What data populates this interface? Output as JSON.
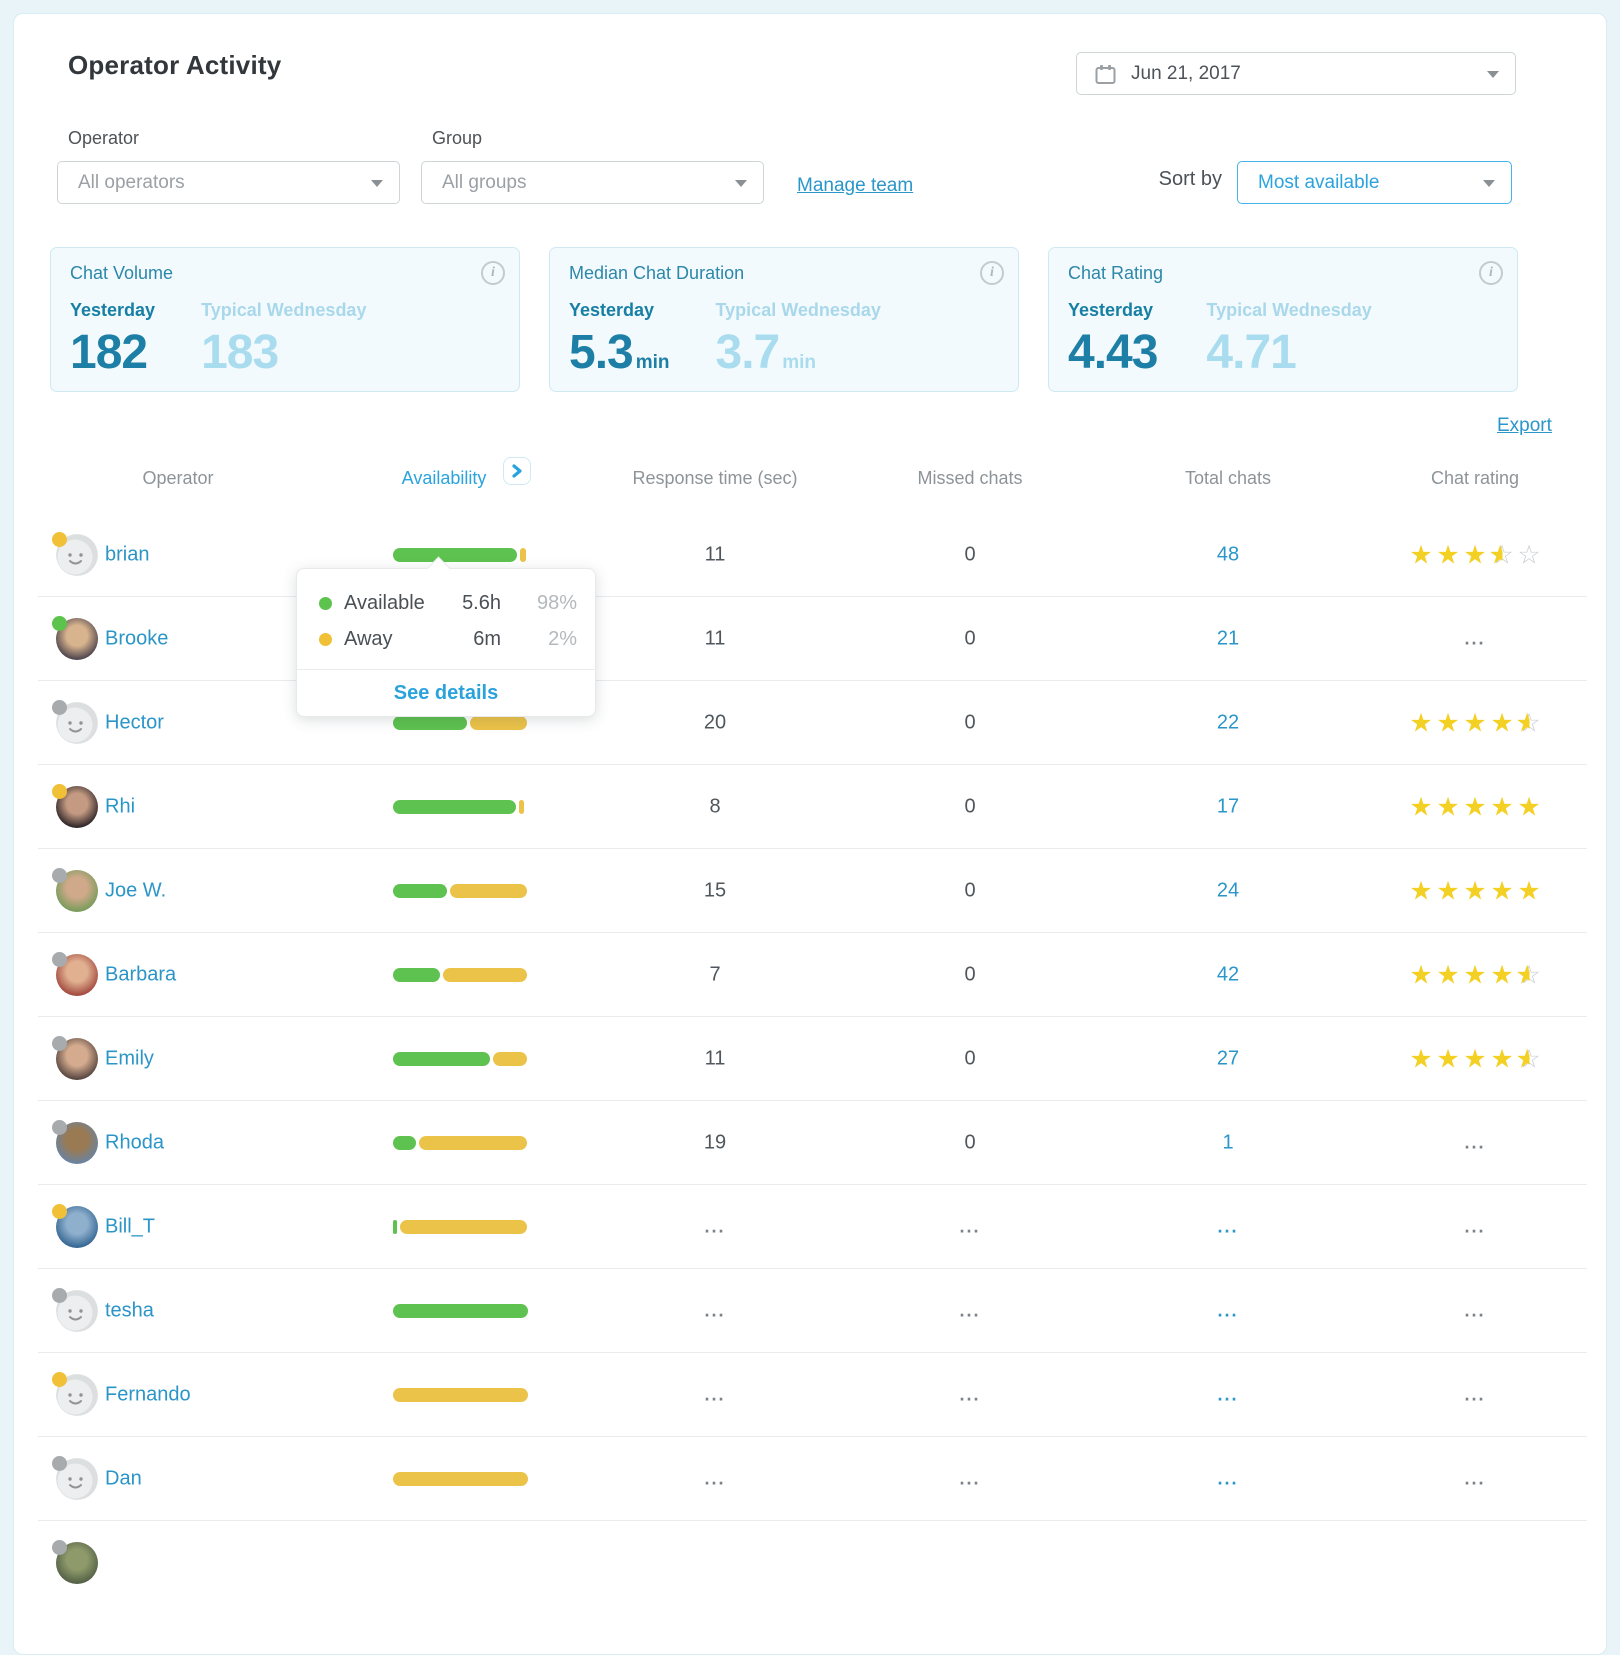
{
  "app": {
    "title": "Operator Activity",
    "export_label": "Export"
  },
  "controls": {
    "date": {
      "value": "Jun 21, 2017"
    },
    "operator_filter": {
      "label": "Operator",
      "value": "All operators"
    },
    "group_filter": {
      "label": "Group",
      "value": "All groups"
    },
    "manage_team_label": "Manage team",
    "sort": {
      "label": "Sort by",
      "value": "Most available"
    }
  },
  "stats": [
    {
      "title": "Chat Volume",
      "yesterday_label": "Yesterday",
      "typical_label": "Typical Wednesday",
      "yesterday_value": "182",
      "yesterday_suffix": "",
      "typical_value": "183",
      "typical_suffix": ""
    },
    {
      "title": "Median Chat Duration",
      "yesterday_label": "Yesterday",
      "typical_label": "Typical Wednesday",
      "yesterday_value": "5.3",
      "yesterday_suffix": "min",
      "typical_value": "3.7",
      "typical_suffix": "min"
    },
    {
      "title": "Chat Rating",
      "yesterday_label": "Yesterday",
      "typical_label": "Typical Wednesday",
      "yesterday_value": "4.43",
      "yesterday_suffix": "",
      "typical_value": "4.71",
      "typical_suffix": ""
    }
  ],
  "table": {
    "columns": [
      "Operator",
      "Availability",
      "Response time (sec)",
      "Missed chats",
      "Total chats",
      "Chat rating"
    ],
    "rows": [
      {
        "name": "brian",
        "avatar": "default",
        "status": "away",
        "bar": [
          [
            "green",
            92
          ],
          [
            "yellow",
            4
          ]
        ],
        "response": "11",
        "missed": "0",
        "total": "48",
        "rating": 3.5
      },
      {
        "name": "Brooke",
        "avatar": "photo",
        "avatar_colors": [
          "#d8b48e",
          "#413a47"
        ],
        "status": "available",
        "bar": [
          [
            "green",
            60
          ],
          [
            "yellow",
            37
          ]
        ],
        "response": "11",
        "missed": "0",
        "total": "21",
        "rating": "..."
      },
      {
        "name": "Hector",
        "avatar": "default",
        "status": "offline",
        "bar": [
          [
            "green",
            55
          ],
          [
            "yellow",
            42
          ]
        ],
        "response": "20",
        "missed": "0",
        "total": "22",
        "rating": 4.5
      },
      {
        "name": "Rhi",
        "avatar": "photo",
        "avatar_colors": [
          "#c49a82",
          "#201a20"
        ],
        "status": "away",
        "bar": [
          [
            "green",
            91
          ],
          [
            "yellow",
            4
          ]
        ],
        "response": "8",
        "missed": "0",
        "total": "17",
        "rating": 5
      },
      {
        "name": "Joe W.",
        "avatar": "photo",
        "avatar_colors": [
          "#cfa98a",
          "#6f9a55"
        ],
        "status": "offline",
        "bar": [
          [
            "green",
            40
          ],
          [
            "yellow",
            57
          ]
        ],
        "response": "15",
        "missed": "0",
        "total": "24",
        "rating": 5
      },
      {
        "name": "Barbara",
        "avatar": "photo",
        "avatar_colors": [
          "#e0b090",
          "#9c4038"
        ],
        "status": "offline",
        "bar": [
          [
            "green",
            35
          ],
          [
            "yellow",
            62
          ]
        ],
        "response": "7",
        "missed": "0",
        "total": "42",
        "rating": 4.5
      },
      {
        "name": "Emily",
        "avatar": "photo",
        "avatar_colors": [
          "#d4ab8e",
          "#4a3b38"
        ],
        "status": "offline",
        "bar": [
          [
            "green",
            72
          ],
          [
            "yellow",
            25
          ]
        ],
        "response": "11",
        "missed": "0",
        "total": "27",
        "rating": 4.5
      },
      {
        "name": "Rhoda",
        "avatar": "photo",
        "avatar_colors": [
          "#9a7a52",
          "#6584a8"
        ],
        "status": "offline",
        "bar": [
          [
            "green",
            17
          ],
          [
            "yellow",
            80
          ]
        ],
        "response": "19",
        "missed": "0",
        "total": "1",
        "rating": "..."
      },
      {
        "name": "Bill_T",
        "avatar": "photo",
        "avatar_colors": [
          "#8fb0cd",
          "#2d5f8e"
        ],
        "status": "away",
        "bar": [
          [
            "green",
            3
          ],
          [
            "yellow",
            94
          ]
        ],
        "response": "...",
        "missed": "...",
        "total": "...",
        "rating": "..."
      },
      {
        "name": "tesha",
        "avatar": "default",
        "status": "offline",
        "bar": [
          [
            "green",
            100
          ]
        ],
        "response": "...",
        "missed": "...",
        "total": "...",
        "rating": "..."
      },
      {
        "name": "Fernando",
        "avatar": "default",
        "status": "away",
        "bar": [
          [
            "yellow",
            100
          ]
        ],
        "response": "...",
        "missed": "...",
        "total": "...",
        "rating": "..."
      },
      {
        "name": "Dan",
        "avatar": "default",
        "status": "offline",
        "bar": [
          [
            "yellow",
            100
          ]
        ],
        "response": "...",
        "missed": "...",
        "total": "...",
        "rating": "..."
      },
      {
        "name": "",
        "avatar": "photo",
        "avatar_colors": [
          "#8e9a6a",
          "#4e5b43"
        ],
        "status": "offline",
        "bar": [],
        "response": "",
        "missed": "",
        "total": "",
        "rating": "",
        "partial": true
      }
    ]
  },
  "tooltip": {
    "rows": [
      {
        "dot": "green",
        "label": "Available",
        "time": "5.6h",
        "pct": "98%"
      },
      {
        "dot": "yellow",
        "label": "Away",
        "time": "6m",
        "pct": "2%"
      }
    ],
    "action_label": "See details"
  },
  "colors": {
    "bar_green": "#5dc24f",
    "bar_yellow": "#ecc349",
    "star_yellow": "#f3d023",
    "status": {
      "available": "#5cc34d",
      "away": "#f0c137",
      "offline": "#a7abae"
    },
    "link_blue": "#2a96c9",
    "accent_blue": "#2ba3de",
    "teal_dark": "#1d7fa6",
    "teal_light": "#a9dcee"
  }
}
